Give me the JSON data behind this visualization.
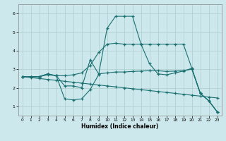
{
  "xlabel": "Humidex (Indice chaleur)",
  "bg_color": "#cce8ec",
  "grid_color": "#aacccc",
  "line_color": "#1a7070",
  "xlim": [
    -0.5,
    23.5
  ],
  "ylim": [
    0.5,
    6.5
  ],
  "xticks": [
    0,
    1,
    2,
    3,
    4,
    5,
    6,
    7,
    8,
    9,
    10,
    11,
    12,
    13,
    14,
    15,
    16,
    17,
    18,
    19,
    20,
    21,
    22,
    23
  ],
  "yticks": [
    1,
    2,
    3,
    4,
    5,
    6
  ],
  "series": [
    {
      "x": [
        0,
        1,
        2,
        3,
        4,
        5,
        6,
        7,
        8,
        9,
        10,
        11,
        12,
        13,
        14,
        15,
        16,
        17,
        18,
        19,
        20,
        21,
        22,
        23
      ],
      "y": [
        2.6,
        2.6,
        2.6,
        2.7,
        2.65,
        2.1,
        2.1,
        2.0,
        3.5,
        2.75,
        2.8,
        2.85,
        2.85,
        2.88,
        2.9,
        2.92,
        2.92,
        2.88,
        2.9,
        2.92,
        3.0,
        1.7,
        1.3,
        0.7
      ]
    },
    {
      "x": [
        0,
        1,
        2,
        3,
        4,
        5,
        6,
        7,
        8,
        9,
        10,
        11,
        12,
        13,
        14,
        15,
        16,
        17,
        18,
        19,
        20,
        21,
        22,
        23
      ],
      "y": [
        2.6,
        2.6,
        2.6,
        2.75,
        2.65,
        1.4,
        1.35,
        1.4,
        1.9,
        2.7,
        5.2,
        5.85,
        5.85,
        5.85,
        4.35,
        3.3,
        2.75,
        2.7,
        2.8,
        2.9,
        3.05,
        1.7,
        1.3,
        0.7
      ]
    },
    {
      "x": [
        0,
        1,
        2,
        3,
        4,
        5,
        6,
        7,
        8,
        9,
        10,
        11,
        12,
        13,
        14,
        15,
        16,
        17,
        18,
        19,
        20,
        21,
        22,
        23
      ],
      "y": [
        2.6,
        2.6,
        2.6,
        2.75,
        2.65,
        2.65,
        2.7,
        2.8,
        3.2,
        3.9,
        4.35,
        4.4,
        4.35,
        4.35,
        4.35,
        4.35,
        4.35,
        4.35,
        4.35,
        4.35,
        3.05,
        1.7,
        1.3,
        0.7
      ]
    },
    {
      "x": [
        0,
        1,
        2,
        3,
        4,
        5,
        6,
        7,
        8,
        9,
        10,
        11,
        12,
        13,
        14,
        15,
        16,
        17,
        18,
        19,
        20,
        21,
        22,
        23
      ],
      "y": [
        2.6,
        2.55,
        2.5,
        2.45,
        2.4,
        2.35,
        2.3,
        2.25,
        2.2,
        2.15,
        2.1,
        2.05,
        2.0,
        1.95,
        1.9,
        1.85,
        1.8,
        1.75,
        1.7,
        1.65,
        1.6,
        1.55,
        1.5,
        1.45
      ]
    }
  ]
}
